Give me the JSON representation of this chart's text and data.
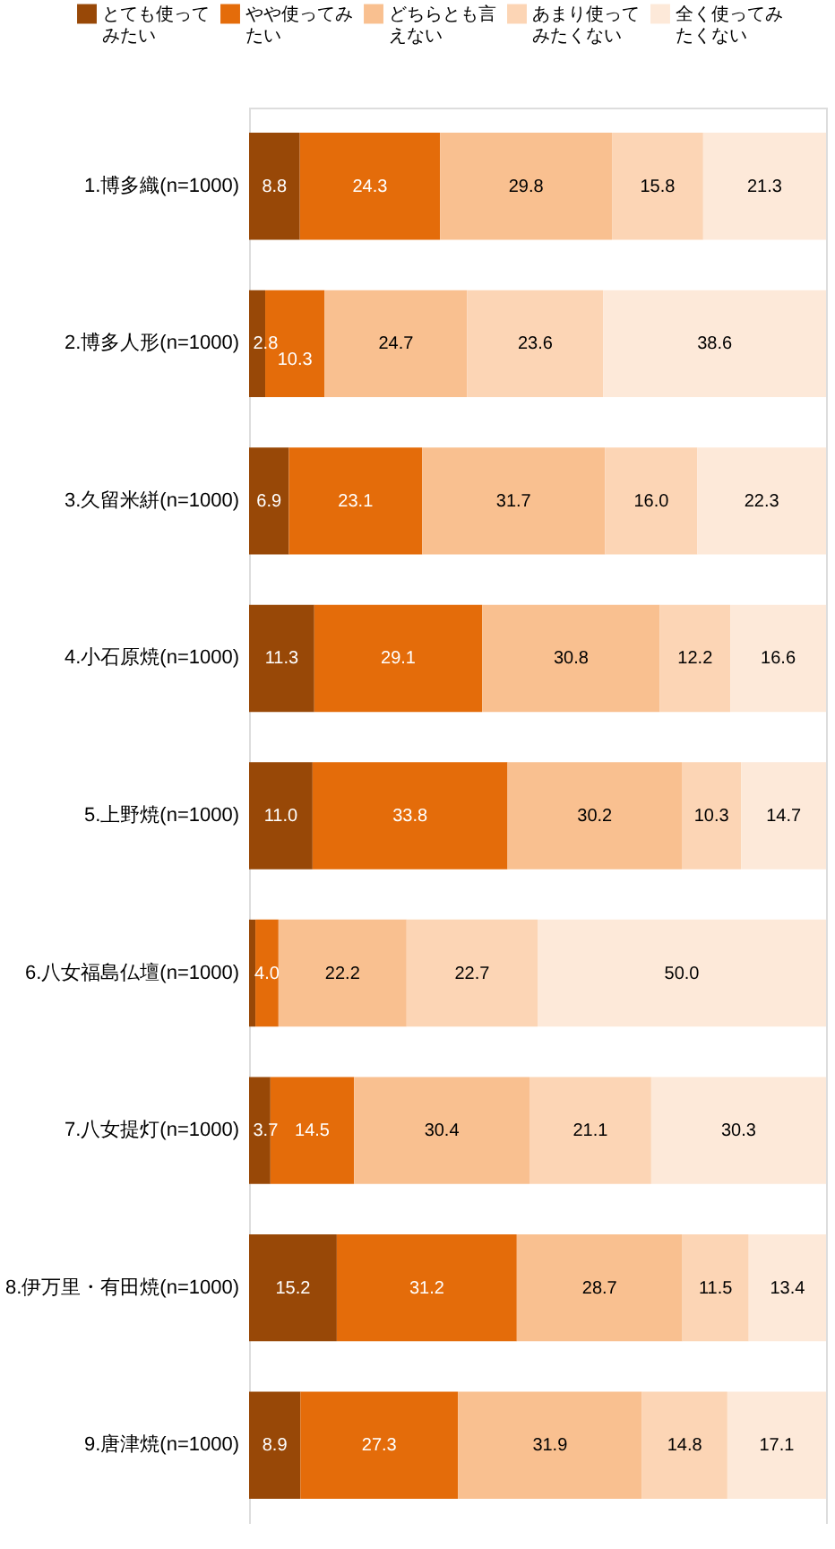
{
  "chart_data": {
    "type": "bar",
    "orientation": "horizontal",
    "stacked": true,
    "legend": "top",
    "categories": [
      "1.博多織(n=1000)",
      "2.博多人形(n=1000)",
      "3.久留米絣(n=1000)",
      "4.小石原焼(n=1000)",
      "5.上野焼(n=1000)",
      "6.八女福島仏壇(n=1000)",
      "7.八女提灯(n=1000)",
      "8.伊万里・有田焼(n=1000)",
      "9.唐津焼(n=1000)"
    ],
    "series": [
      {
        "name": "とても使ってみたい",
        "color": "#984807",
        "values": [
          8.8,
          2.8,
          6.9,
          11.3,
          11.0,
          1.1,
          3.7,
          15.2,
          8.9
        ],
        "value_labels": [
          "8.8",
          "2.8",
          "6.9",
          "11.3",
          "11.0",
          null,
          "3.7",
          "15.2",
          "8.9"
        ]
      },
      {
        "name": "やや使ってみたい",
        "color": "#e46c0a",
        "values": [
          24.3,
          10.3,
          23.1,
          29.1,
          33.8,
          4.0,
          14.5,
          31.2,
          27.3
        ],
        "value_labels": [
          "24.3",
          "10.3",
          "23.1",
          "29.1",
          "33.8",
          "4.0",
          "14.5",
          "31.2",
          "27.3"
        ]
      },
      {
        "name": "どちらとも言えない",
        "color": "#f9c090",
        "values": [
          29.8,
          24.7,
          31.7,
          30.8,
          30.2,
          22.2,
          30.4,
          28.7,
          31.9
        ],
        "value_labels": [
          "29.8",
          "24.7",
          "31.7",
          "30.8",
          "30.2",
          "22.2",
          "30.4",
          "28.7",
          "31.9"
        ]
      },
      {
        "name": "あまり使ってみたくない",
        "color": "#fcd5b5",
        "values": [
          15.8,
          23.6,
          16.0,
          12.2,
          10.3,
          22.7,
          21.1,
          11.5,
          14.8
        ],
        "value_labels": [
          "15.8",
          "23.6",
          "16.0",
          "12.2",
          "10.3",
          "22.7",
          "21.1",
          "11.5",
          "14.8"
        ]
      },
      {
        "name": "全く使ってみたくない",
        "color": "#fde9d9",
        "values": [
          21.3,
          38.6,
          22.3,
          16.6,
          14.7,
          50.0,
          30.3,
          13.4,
          17.1
        ],
        "value_labels": [
          "21.3",
          "38.6",
          "22.3",
          "16.6",
          "14.7",
          "50.0",
          "30.3",
          "13.4",
          "17.1"
        ]
      }
    ]
  }
}
